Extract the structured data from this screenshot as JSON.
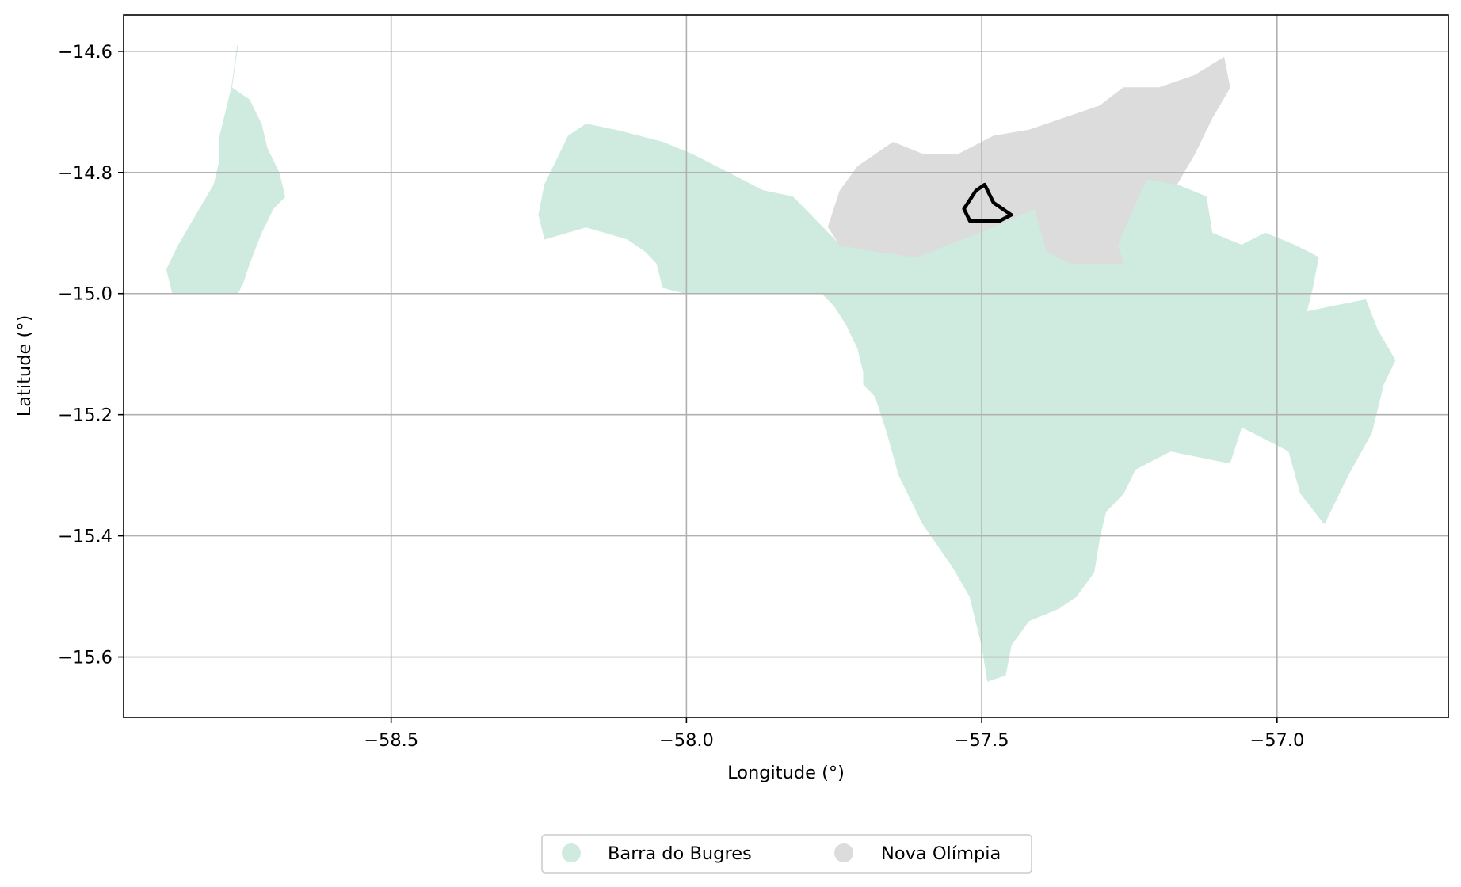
{
  "chart_data": {
    "type": "map",
    "title": "",
    "xlabel": "Longitude (°)",
    "ylabel": "Latitude (°)",
    "xlim": [
      -58.953,
      -56.71
    ],
    "ylim": [
      -15.7,
      -14.54
    ],
    "grid": true,
    "xticks": [
      -58.5,
      -58.0,
      -57.5,
      -57.0
    ],
    "xtick_labels": [
      "−58.5",
      "−58.0",
      "−57.5",
      "−57.0"
    ],
    "yticks": [
      -14.6,
      -14.8,
      -15.0,
      -15.2,
      -15.4,
      -15.6
    ],
    "ytick_labels": [
      "−14.6",
      "−14.8",
      "−15.0",
      "−15.2",
      "−15.4",
      "−15.6"
    ],
    "legend_position": "bottom-center, below axes",
    "regions": [
      {
        "name": "Barra do Bugres",
        "color": "#cfebdf",
        "parts": [
          [
            [
              -58.76,
              -14.59
            ],
            [
              -58.77,
              -14.66
            ],
            [
              -58.74,
              -14.68
            ],
            [
              -58.72,
              -14.72
            ],
            [
              -58.71,
              -14.76
            ],
            [
              -58.69,
              -14.8
            ],
            [
              -58.68,
              -14.84
            ],
            [
              -58.7,
              -14.86
            ],
            [
              -58.72,
              -14.9
            ],
            [
              -58.74,
              -14.95
            ],
            [
              -58.75,
              -14.98
            ],
            [
              -58.76,
              -15.0
            ],
            [
              -58.87,
              -15.0
            ],
            [
              -58.88,
              -14.96
            ],
            [
              -58.86,
              -14.92
            ],
            [
              -58.83,
              -14.87
            ],
            [
              -58.8,
              -14.82
            ],
            [
              -58.79,
              -14.78
            ],
            [
              -58.79,
              -14.74
            ],
            [
              -58.78,
              -14.7
            ],
            [
              -58.77,
              -14.66
            ]
          ],
          [
            [
              -58.24,
              -14.91
            ],
            [
              -58.17,
              -14.89
            ],
            [
              -58.1,
              -14.91
            ],
            [
              -58.07,
              -14.93
            ],
            [
              -58.05,
              -14.95
            ],
            [
              -58.04,
              -14.99
            ],
            [
              -58.0,
              -15.0
            ],
            [
              -57.77,
              -15.0
            ],
            [
              -57.75,
              -15.02
            ],
            [
              -57.73,
              -15.05
            ],
            [
              -57.71,
              -15.09
            ],
            [
              -57.7,
              -15.13
            ],
            [
              -57.7,
              -15.15
            ],
            [
              -57.68,
              -15.17
            ],
            [
              -57.66,
              -15.23
            ],
            [
              -57.64,
              -15.3
            ],
            [
              -57.6,
              -15.38
            ],
            [
              -57.55,
              -15.45
            ],
            [
              -57.52,
              -15.5
            ],
            [
              -57.5,
              -15.58
            ],
            [
              -57.49,
              -15.64
            ],
            [
              -57.46,
              -15.63
            ],
            [
              -57.45,
              -15.58
            ],
            [
              -57.42,
              -15.54
            ],
            [
              -57.37,
              -15.52
            ],
            [
              -57.34,
              -15.5
            ],
            [
              -57.31,
              -15.46
            ],
            [
              -57.3,
              -15.4
            ],
            [
              -57.29,
              -15.36
            ],
            [
              -57.26,
              -15.33
            ],
            [
              -57.24,
              -15.29
            ],
            [
              -57.18,
              -15.26
            ],
            [
              -57.13,
              -15.27
            ],
            [
              -57.08,
              -15.28
            ],
            [
              -57.06,
              -15.22
            ],
            [
              -57.02,
              -15.24
            ],
            [
              -56.98,
              -15.26
            ],
            [
              -56.96,
              -15.33
            ],
            [
              -56.92,
              -15.38
            ],
            [
              -56.88,
              -15.3
            ],
            [
              -56.84,
              -15.23
            ],
            [
              -56.82,
              -15.15
            ],
            [
              -56.8,
              -15.11
            ],
            [
              -56.83,
              -15.06
            ],
            [
              -56.85,
              -15.01
            ],
            [
              -56.9,
              -15.02
            ],
            [
              -56.95,
              -15.03
            ],
            [
              -56.94,
              -14.99
            ],
            [
              -56.93,
              -14.94
            ],
            [
              -56.97,
              -14.92
            ],
            [
              -57.02,
              -14.9
            ],
            [
              -57.06,
              -14.92
            ],
            [
              -57.11,
              -14.9
            ],
            [
              -57.12,
              -14.84
            ],
            [
              -57.17,
              -14.82
            ],
            [
              -57.22,
              -14.81
            ],
            [
              -57.24,
              -14.85
            ],
            [
              -57.27,
              -14.92
            ],
            [
              -57.26,
              -14.95
            ],
            [
              -57.35,
              -14.95
            ],
            [
              -57.39,
              -14.93
            ],
            [
              -57.41,
              -14.86
            ],
            [
              -57.48,
              -14.89
            ],
            [
              -57.56,
              -14.92
            ],
            [
              -57.61,
              -14.94
            ],
            [
              -57.68,
              -14.93
            ],
            [
              -57.74,
              -14.92
            ],
            [
              -57.78,
              -14.88
            ],
            [
              -57.82,
              -14.84
            ],
            [
              -57.87,
              -14.83
            ],
            [
              -57.93,
              -14.8
            ],
            [
              -57.99,
              -14.77
            ],
            [
              -58.04,
              -14.75
            ],
            [
              -58.08,
              -14.74
            ],
            [
              -58.12,
              -14.73
            ],
            [
              -58.17,
              -14.72
            ],
            [
              -58.2,
              -14.74
            ],
            [
              -58.22,
              -14.78
            ],
            [
              -58.24,
              -14.82
            ],
            [
              -58.25,
              -14.87
            ]
          ]
        ]
      },
      {
        "name": "Nova Olímpia",
        "color": "#dcdcdc",
        "parts": [
          [
            [
              -57.65,
              -14.75
            ],
            [
              -57.6,
              -14.77
            ],
            [
              -57.54,
              -14.77
            ],
            [
              -57.48,
              -14.74
            ],
            [
              -57.42,
              -14.73
            ],
            [
              -57.36,
              -14.71
            ],
            [
              -57.3,
              -14.69
            ],
            [
              -57.26,
              -14.66
            ],
            [
              -57.2,
              -14.66
            ],
            [
              -57.14,
              -14.64
            ],
            [
              -57.09,
              -14.61
            ],
            [
              -57.08,
              -14.66
            ],
            [
              -57.11,
              -14.71
            ],
            [
              -57.14,
              -14.77
            ],
            [
              -57.17,
              -14.82
            ],
            [
              -57.22,
              -14.81
            ],
            [
              -57.24,
              -14.85
            ],
            [
              -57.27,
              -14.92
            ],
            [
              -57.26,
              -14.95
            ],
            [
              -57.35,
              -14.95
            ],
            [
              -57.39,
              -14.93
            ],
            [
              -57.41,
              -14.86
            ],
            [
              -57.48,
              -14.89
            ],
            [
              -57.56,
              -14.92
            ],
            [
              -57.61,
              -14.94
            ],
            [
              -57.68,
              -14.93
            ],
            [
              -57.74,
              -14.92
            ],
            [
              -57.76,
              -14.89
            ],
            [
              -57.74,
              -14.83
            ],
            [
              -57.71,
              -14.79
            ]
          ]
        ]
      }
    ],
    "highlight": {
      "name": "outline",
      "color": "#000000",
      "coords": [
        [
          -57.495,
          -14.82
        ],
        [
          -57.48,
          -14.85
        ],
        [
          -57.45,
          -14.87
        ],
        [
          -57.47,
          -14.88
        ],
        [
          -57.52,
          -14.88
        ],
        [
          -57.53,
          -14.86
        ],
        [
          -57.51,
          -14.83
        ],
        [
          -57.495,
          -14.82
        ]
      ]
    },
    "legend": [
      {
        "label": "Barra do Bugres",
        "color": "#cfebdf"
      },
      {
        "label": "Nova Olímpia",
        "color": "#dcdcdc"
      }
    ]
  }
}
